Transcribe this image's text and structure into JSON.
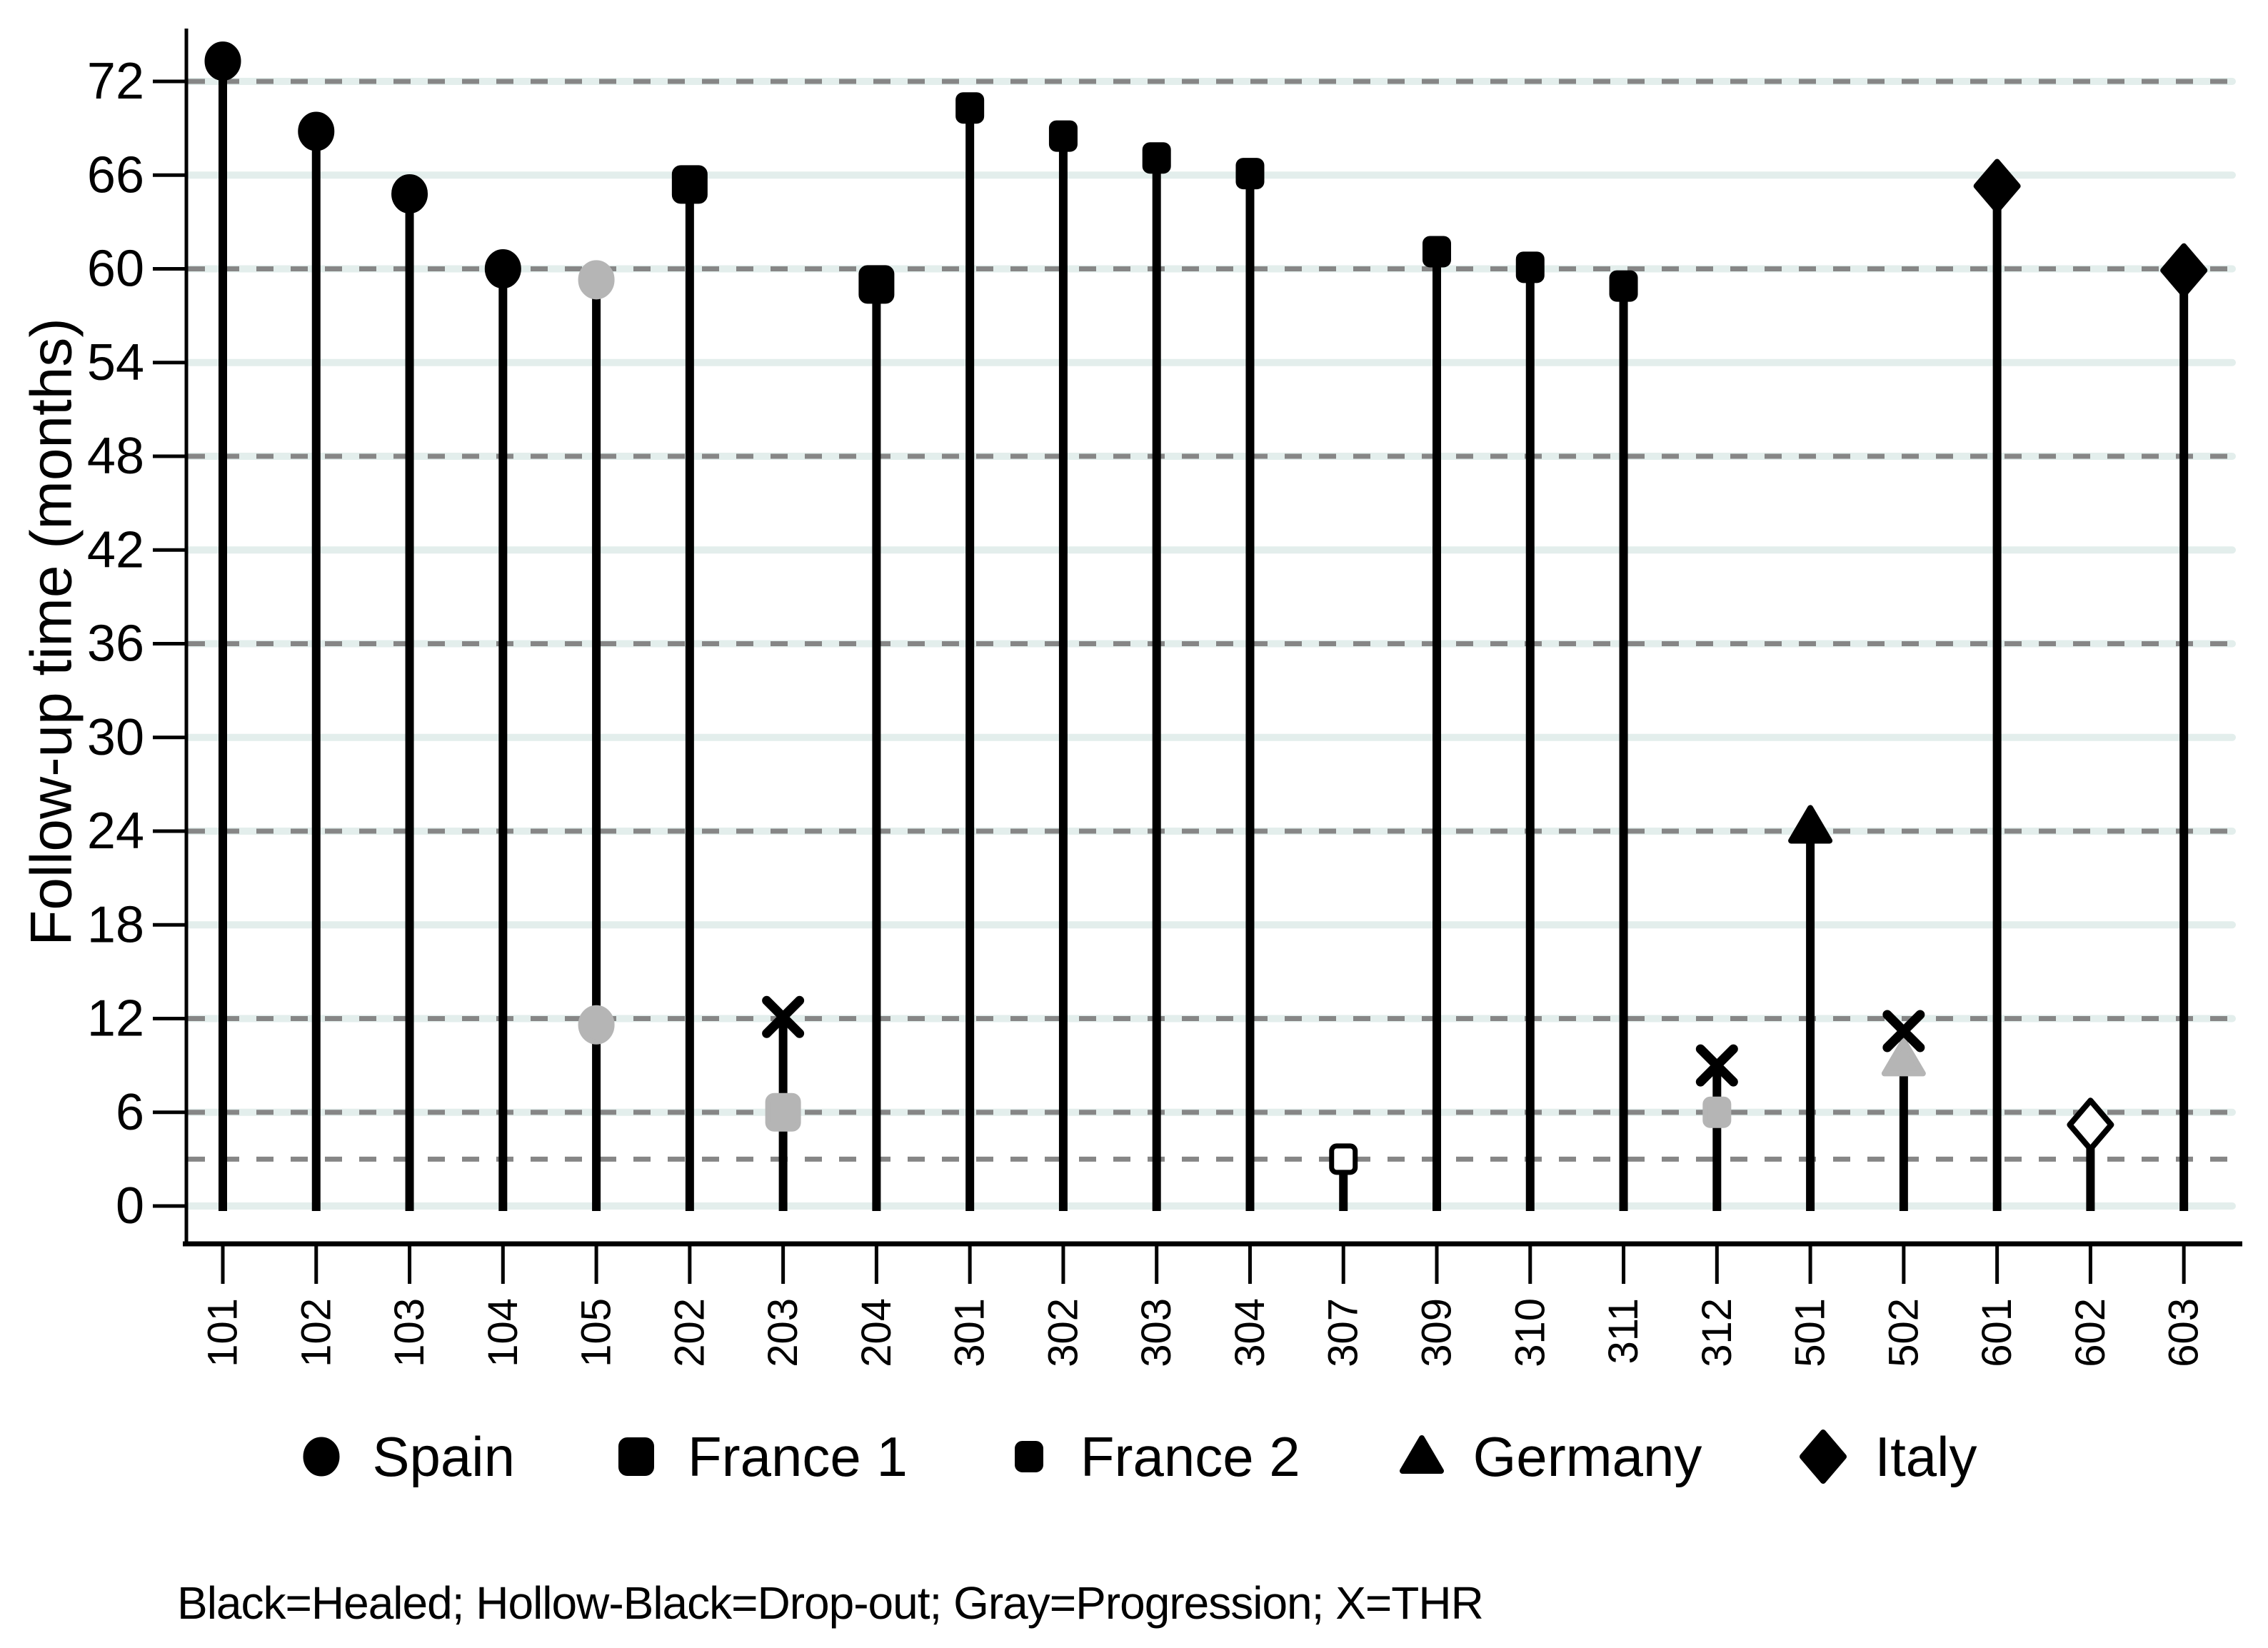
{
  "figure": {
    "footnote": "Black=Healed; Hollow-Black=Drop-out; Gray=Progression; X=THR",
    "colors": {
      "black": "#000000",
      "gray_marker": "#b5b5b5",
      "dash_gridline": "#868686",
      "band_gridline": "#e3eeec",
      "background": "#ffffff"
    },
    "legend": [
      {
        "shape": "circle",
        "marker_name": "circle-icon",
        "label": "Spain"
      },
      {
        "shape": "square_large",
        "marker_name": "square-large-icon",
        "label": "France 1"
      },
      {
        "shape": "square_small",
        "marker_name": "square-small-icon",
        "label": "France 2"
      },
      {
        "shape": "triangle",
        "marker_name": "triangle-icon",
        "label": "Germany"
      },
      {
        "shape": "diamond",
        "marker_name": "diamond-icon",
        "label": "Italy"
      }
    ]
  },
  "chart_data": {
    "type": "stem-lollipop",
    "title": "",
    "xlabel": "",
    "ylabel": "Follow-up time (months)",
    "ylim": [
      0,
      75
    ],
    "y_ticks": [
      0,
      6,
      12,
      18,
      24,
      30,
      36,
      42,
      48,
      54,
      60,
      66,
      72
    ],
    "dashed_visit_lines": [
      3,
      6,
      12,
      24,
      36,
      48,
      60,
      72
    ],
    "grid": "horizontal: solid pale band at every 6 months, gray dashed at visit months",
    "legend_position": "bottom-center",
    "categories": [
      "101",
      "102",
      "103",
      "104",
      "105",
      "202",
      "203",
      "204",
      "301",
      "302",
      "303",
      "304",
      "307",
      "309",
      "310",
      "311",
      "312",
      "501",
      "502",
      "601",
      "602",
      "603"
    ],
    "country_shapes": {
      "Spain": "circle",
      "France 1": "square_large",
      "France 2": "square_small",
      "Germany": "triangle",
      "Italy": "diamond"
    },
    "status_styles": {
      "healed": "black",
      "dropout": "hollow",
      "progression": "gray",
      "thr": "x"
    },
    "subjects": [
      {
        "id": "101",
        "country": "Spain",
        "markers": [
          {
            "value": 73.3,
            "status": "healed"
          }
        ]
      },
      {
        "id": "102",
        "country": "Spain",
        "markers": [
          {
            "value": 68.8,
            "status": "healed"
          }
        ]
      },
      {
        "id": "103",
        "country": "Spain",
        "markers": [
          {
            "value": 64.8,
            "status": "healed"
          }
        ]
      },
      {
        "id": "104",
        "country": "Spain",
        "markers": [
          {
            "value": 60.0,
            "status": "healed"
          }
        ]
      },
      {
        "id": "105",
        "country": "Spain",
        "markers": [
          {
            "value": 11.6,
            "status": "progression"
          },
          {
            "value": 59.3,
            "status": "progression"
          }
        ]
      },
      {
        "id": "202",
        "country": "France 1",
        "markers": [
          {
            "value": 65.4,
            "status": "healed"
          }
        ]
      },
      {
        "id": "203",
        "country": "France 1",
        "markers": [
          {
            "value": 6.0,
            "status": "progression"
          },
          {
            "value": 12.1,
            "status": "thr"
          }
        ]
      },
      {
        "id": "204",
        "country": "France 1",
        "markers": [
          {
            "value": 59.0,
            "status": "healed"
          }
        ]
      },
      {
        "id": "301",
        "country": "France 2",
        "markers": [
          {
            "value": 70.3,
            "status": "healed"
          }
        ]
      },
      {
        "id": "302",
        "country": "France 2",
        "markers": [
          {
            "value": 68.5,
            "status": "healed"
          }
        ]
      },
      {
        "id": "303",
        "country": "France 2",
        "markers": [
          {
            "value": 67.1,
            "status": "healed"
          }
        ]
      },
      {
        "id": "304",
        "country": "France 2",
        "markers": [
          {
            "value": 66.1,
            "status": "healed"
          }
        ]
      },
      {
        "id": "307",
        "country": "France 2",
        "markers": [
          {
            "value": 3.0,
            "status": "dropout"
          }
        ]
      },
      {
        "id": "309",
        "country": "France 2",
        "markers": [
          {
            "value": 61.1,
            "status": "healed"
          }
        ]
      },
      {
        "id": "310",
        "country": "France 2",
        "markers": [
          {
            "value": 60.1,
            "status": "healed"
          }
        ]
      },
      {
        "id": "311",
        "country": "France 2",
        "markers": [
          {
            "value": 58.9,
            "status": "healed"
          }
        ]
      },
      {
        "id": "312",
        "country": "France 2",
        "markers": [
          {
            "value": 6.0,
            "status": "progression"
          },
          {
            "value": 9.0,
            "status": "thr"
          }
        ]
      },
      {
        "id": "501",
        "country": "Germany",
        "markers": [
          {
            "value": 24.3,
            "status": "healed"
          }
        ]
      },
      {
        "id": "502",
        "country": "Germany",
        "markers": [
          {
            "value": 9.4,
            "status": "progression"
          },
          {
            "value": 11.2,
            "status": "thr"
          }
        ]
      },
      {
        "id": "601",
        "country": "Italy",
        "markers": [
          {
            "value": 65.3,
            "status": "healed"
          }
        ]
      },
      {
        "id": "602",
        "country": "Italy",
        "markers": [
          {
            "value": 5.2,
            "status": "dropout"
          }
        ]
      },
      {
        "id": "603",
        "country": "Italy",
        "markers": [
          {
            "value": 59.9,
            "status": "healed"
          }
        ]
      }
    ]
  }
}
